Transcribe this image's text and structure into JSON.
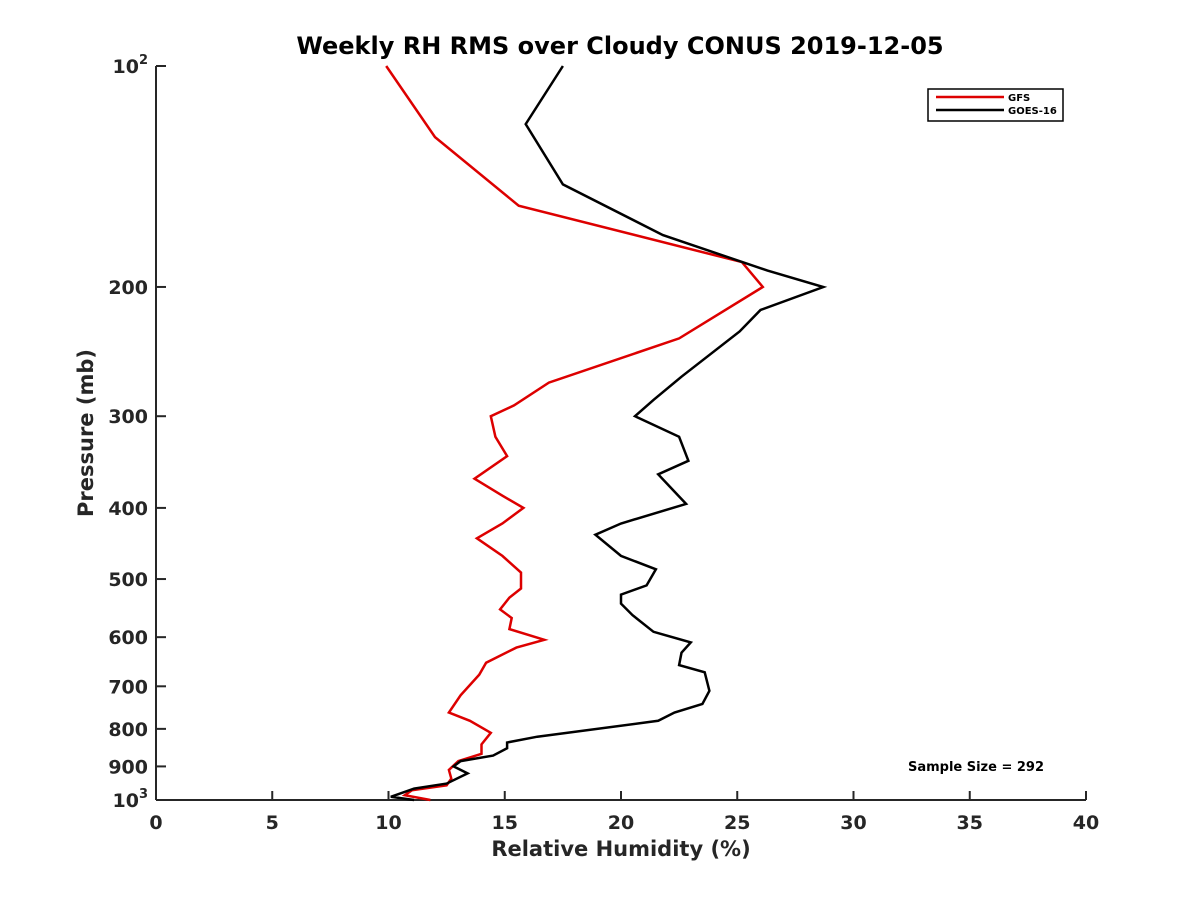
{
  "chart_data": {
    "type": "line",
    "title": "Weekly RH RMS over Cloudy CONUS 2019-12-05",
    "xlabel": "Relative Humidity (%)",
    "ylabel": "Pressure (mb)",
    "xlim": [
      0,
      40
    ],
    "ylim": [
      100,
      1000
    ],
    "yscale": "log",
    "y_reversed": true,
    "grid": false,
    "legend_position": "top-right",
    "x_ticks": [
      "0",
      "5",
      "10",
      "15",
      "20",
      "25",
      "30",
      "35",
      "40"
    ],
    "y_ticks": [
      {
        "value": 100,
        "base": "10",
        "exp": "2"
      },
      {
        "value": 200,
        "label": "200"
      },
      {
        "value": 300,
        "label": "300"
      },
      {
        "value": 400,
        "label": "400"
      },
      {
        "value": 500,
        "label": "500"
      },
      {
        "value": 600,
        "label": "600"
      },
      {
        "value": 700,
        "label": "700"
      },
      {
        "value": 800,
        "label": "800"
      },
      {
        "value": 900,
        "label": "900"
      },
      {
        "value": 1000,
        "base": "10",
        "exp": "3"
      }
    ],
    "annotation": "Sample Size = 292",
    "series": [
      {
        "name": "GFS",
        "color": "#dd0000",
        "points": [
          [
            9.9,
            100
          ],
          [
            12.0,
            125
          ],
          [
            15.6,
            155
          ],
          [
            25.2,
            185
          ],
          [
            26.1,
            200
          ],
          [
            22.5,
            235
          ],
          [
            16.9,
            270
          ],
          [
            15.4,
            290
          ],
          [
            14.4,
            300
          ],
          [
            14.6,
            320
          ],
          [
            15.1,
            340
          ],
          [
            13.7,
            365
          ],
          [
            14.9,
            385
          ],
          [
            15.8,
            400
          ],
          [
            14.9,
            420
          ],
          [
            13.8,
            440
          ],
          [
            14.9,
            465
          ],
          [
            15.7,
            490
          ],
          [
            15.7,
            515
          ],
          [
            15.2,
            530
          ],
          [
            14.8,
            550
          ],
          [
            15.3,
            565
          ],
          [
            15.2,
            585
          ],
          [
            16.7,
            605
          ],
          [
            15.5,
            620
          ],
          [
            14.2,
            650
          ],
          [
            13.9,
            675
          ],
          [
            13.1,
            720
          ],
          [
            12.6,
            760
          ],
          [
            13.5,
            780
          ],
          [
            14.4,
            810
          ],
          [
            14.0,
            840
          ],
          [
            14.0,
            865
          ],
          [
            13.0,
            885
          ],
          [
            12.6,
            910
          ],
          [
            12.7,
            935
          ],
          [
            12.5,
            955
          ],
          [
            11.0,
            970
          ],
          [
            10.7,
            985
          ],
          [
            11.8,
            1000
          ]
        ]
      },
      {
        "name": "GOES-16",
        "color": "#000000",
        "points": [
          [
            17.5,
            100
          ],
          [
            15.9,
            120
          ],
          [
            17.5,
            145
          ],
          [
            21.8,
            170
          ],
          [
            26.3,
            190
          ],
          [
            28.7,
            200
          ],
          [
            26.0,
            215
          ],
          [
            25.1,
            230
          ],
          [
            22.6,
            265
          ],
          [
            21.4,
            285
          ],
          [
            20.6,
            300
          ],
          [
            22.5,
            320
          ],
          [
            22.9,
            345
          ],
          [
            21.6,
            360
          ],
          [
            22.3,
            380
          ],
          [
            22.8,
            395
          ],
          [
            20.0,
            420
          ],
          [
            18.9,
            435
          ],
          [
            20.0,
            465
          ],
          [
            21.5,
            485
          ],
          [
            21.1,
            510
          ],
          [
            20.0,
            525
          ],
          [
            20.0,
            540
          ],
          [
            20.5,
            560
          ],
          [
            21.4,
            590
          ],
          [
            23.0,
            610
          ],
          [
            22.6,
            630
          ],
          [
            22.5,
            655
          ],
          [
            23.6,
            670
          ],
          [
            23.8,
            710
          ],
          [
            23.5,
            740
          ],
          [
            22.3,
            760
          ],
          [
            21.6,
            780
          ],
          [
            16.4,
            820
          ],
          [
            15.1,
            835
          ],
          [
            15.1,
            850
          ],
          [
            14.5,
            870
          ],
          [
            13.1,
            885
          ],
          [
            12.8,
            900
          ],
          [
            13.4,
            920
          ],
          [
            12.5,
            950
          ],
          [
            11.1,
            965
          ],
          [
            10.1,
            990
          ],
          [
            11.1,
            1000
          ]
        ]
      }
    ]
  }
}
